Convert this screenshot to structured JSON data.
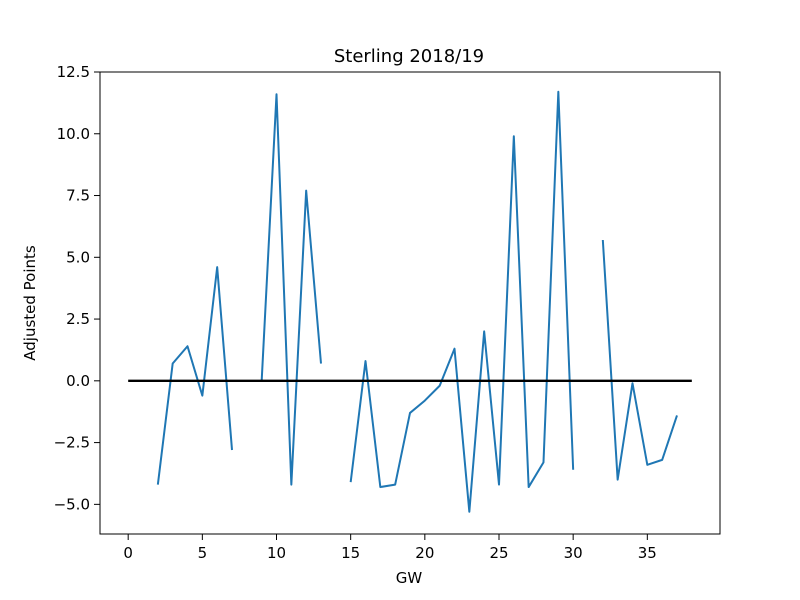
{
  "chart_data": {
    "type": "line",
    "title": "Sterling 2018/19",
    "xlabel": "GW",
    "ylabel": "Adjusted Points",
    "xlim": [
      -1.9,
      39.9
    ],
    "ylim": [
      -6.2,
      12.5
    ],
    "x_ticks": [
      0,
      5,
      10,
      15,
      20,
      25,
      30,
      35
    ],
    "x_tick_labels": [
      "0",
      "5",
      "10",
      "15",
      "20",
      "25",
      "30",
      "35"
    ],
    "y_ticks": [
      12.5,
      10.0,
      7.5,
      5.0,
      2.5,
      0.0,
      -2.5,
      -5.0
    ],
    "y_tick_labels": [
      "12.5",
      "10.0",
      "7.5",
      "5.0",
      "2.5",
      "0.0",
      "−2.5",
      "−5.0"
    ],
    "grid": false,
    "legend": "none",
    "series": [
      {
        "color": "#1f77b4",
        "points": [
          {
            "x": 2,
            "y": -4.2
          },
          {
            "x": 3,
            "y": 0.7
          },
          {
            "x": 4,
            "y": 1.4
          },
          {
            "x": 5,
            "y": -0.6
          },
          {
            "x": 6,
            "y": 4.6
          },
          {
            "x": 7,
            "y": -2.8
          },
          {
            "x": 8,
            "y": null
          },
          {
            "x": 9,
            "y": 0.0
          },
          {
            "x": 10,
            "y": 11.6
          },
          {
            "x": 11,
            "y": -4.2
          },
          {
            "x": 12,
            "y": 7.7
          },
          {
            "x": 13,
            "y": 0.7
          },
          {
            "x": 14,
            "y": null
          },
          {
            "x": 15,
            "y": -4.1
          },
          {
            "x": 16,
            "y": 0.8
          },
          {
            "x": 17,
            "y": -4.3
          },
          {
            "x": 18,
            "y": -4.2
          },
          {
            "x": 19,
            "y": -1.3
          },
          {
            "x": 20,
            "y": -0.8
          },
          {
            "x": 21,
            "y": -0.2
          },
          {
            "x": 22,
            "y": 1.3
          },
          {
            "x": 23,
            "y": -5.3
          },
          {
            "x": 24,
            "y": 2.0
          },
          {
            "x": 25,
            "y": -4.2
          },
          {
            "x": 26,
            "y": 9.9
          },
          {
            "x": 27,
            "y": -4.3
          },
          {
            "x": 28,
            "y": -3.3
          },
          {
            "x": 29,
            "y": 11.7
          },
          {
            "x": 30,
            "y": -3.6
          },
          {
            "x": 31,
            "y": null
          },
          {
            "x": 32,
            "y": 5.7
          },
          {
            "x": 33,
            "y": -4.0
          },
          {
            "x": 34,
            "y": -0.1
          },
          {
            "x": 35,
            "y": -3.4
          },
          {
            "x": 36,
            "y": -3.2
          },
          {
            "x": 37,
            "y": -1.4
          }
        ]
      },
      {
        "color": "#000000",
        "points": [
          {
            "x": 0,
            "y": 0
          },
          {
            "x": 38,
            "y": 0
          }
        ]
      }
    ]
  }
}
